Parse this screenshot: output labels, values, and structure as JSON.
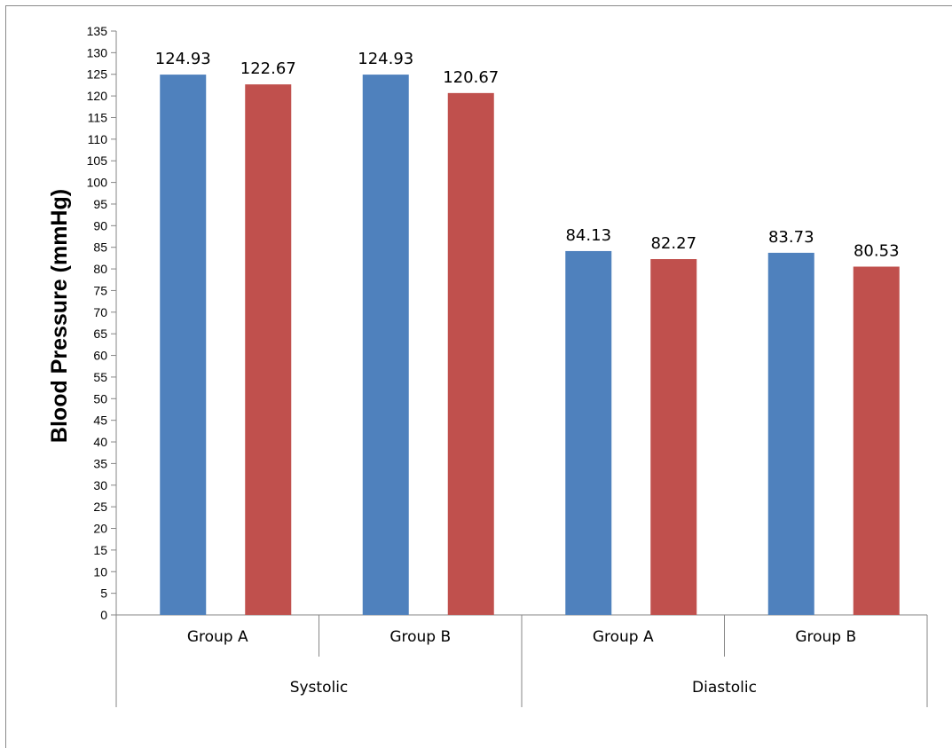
{
  "chart_data": {
    "type": "bar",
    "ylabel": "Blood Pressure (mmHg)",
    "xlabel": "",
    "title": "",
    "ylim": [
      0,
      135
    ],
    "ytick_step": 5,
    "grid": false,
    "groups": [
      {
        "label": "Systolic",
        "categories": [
          "Group A",
          "Group B"
        ]
      },
      {
        "label": "Diastolic",
        "categories": [
          "Group A",
          "Group B"
        ]
      }
    ],
    "categories": [
      "Group A",
      "Group B",
      "Group A",
      "Group B"
    ],
    "series": [
      {
        "values": [
          124.93,
          124.93,
          84.13,
          83.73
        ],
        "color": "#4F81BD"
      },
      {
        "values": [
          122.67,
          120.67,
          82.27,
          80.53
        ],
        "color": "#C0504D"
      }
    ],
    "data_labels": [
      [
        "124.93",
        "124.93",
        "84.13",
        "83.73"
      ],
      [
        "122.67",
        "120.67",
        "82.27",
        "80.53"
      ]
    ]
  }
}
